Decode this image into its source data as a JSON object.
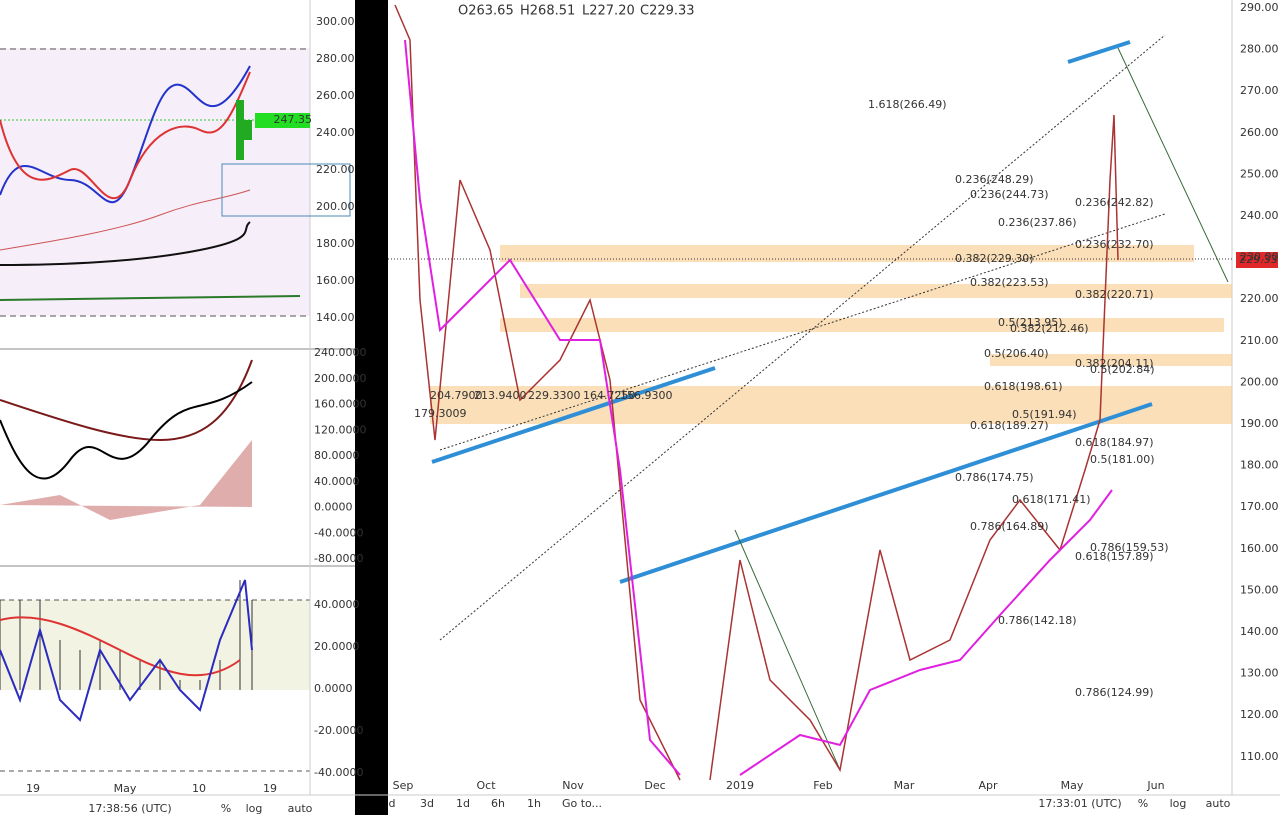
{
  "left_panel": {
    "price_axis": [
      "300.00",
      "280.00",
      "260.00",
      "240.00",
      "220.00",
      "200.00",
      "180.00",
      "160.00",
      "140.00"
    ],
    "price_tag": "247.35",
    "osc1_axis": [
      "240.0000",
      "200.0000",
      "160.0000",
      "120.0000",
      "80.0000",
      "40.0000",
      "0.0000",
      "-40.0000",
      "-80.0000"
    ],
    "osc2_axis": [
      "40.0000",
      "20.0000",
      "0.0000",
      "-20.0000",
      "-40.0000"
    ],
    "time_labels": [
      "19",
      "May",
      "10",
      "19"
    ],
    "toolbar": [
      "17:38:56 (UTC)",
      "%",
      "log",
      "auto"
    ]
  },
  "right_panel": {
    "header": [
      "O263.65",
      "H268.51",
      "L227.20",
      "C229.33"
    ],
    "price_axis": [
      "290.00",
      "280.00",
      "270.00",
      "260.00",
      "250.00",
      "240.00",
      "230.00",
      "220.00",
      "210.00",
      "200.00",
      "190.00",
      "180.00",
      "170.00",
      "160.00",
      "150.00",
      "140.00",
      "130.00",
      "120.00",
      "110.00"
    ],
    "price_tag": "229.33",
    "indicator_values": [
      "204.7900",
      "213.9400",
      "229.3300",
      "164.7250",
      "156.9300",
      "179.3009"
    ],
    "fib_labels": [
      "1.618(266.49)",
      "0.236(248.29)",
      "0.236(244.73)",
      "0.236(242.82)",
      "0.236(237.86)",
      "0.236(232.70)",
      "0.382(229.30)",
      "0.382(223.53)",
      "0.382(220.71)",
      "0.5(213.95)",
      "0.382(212.46)",
      "0.5(206.40)",
      "0.382(204.11)",
      "0.5(202.84)",
      "0.618(198.61)",
      "0.5(191.94)",
      "0.618(189.27)",
      "0.618(184.97)",
      "0.5(181.00)",
      "0.786(174.75)",
      "0.618(171.41)",
      "0.786(164.89)",
      "0.786(159.53)",
      "0.618(157.89)",
      "0.786(142.18)",
      "0.786(124.99)"
    ],
    "time_labels": [
      "Sep",
      "Oct",
      "Nov",
      "Dec",
      "2019",
      "Feb",
      "Mar",
      "Apr",
      "May",
      "Jun"
    ],
    "toolbar": [
      "d",
      "3d",
      "1d",
      "6h",
      "1h",
      "Go to...",
      "17:33:01 (UTC)",
      "%",
      "log",
      "auto"
    ]
  }
}
